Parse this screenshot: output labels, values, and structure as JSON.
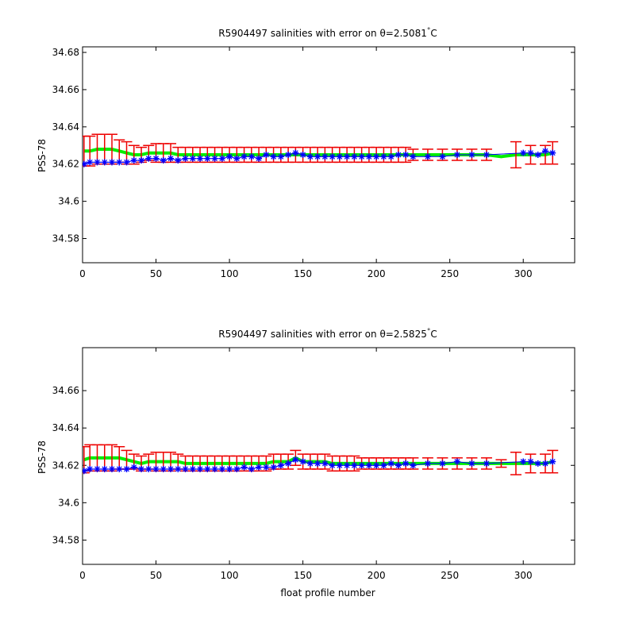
{
  "colors": {
    "mapped": "#00ee00",
    "error": "#ee0000",
    "float": "#0000ff",
    "axis": "#000000",
    "background": "#ffffff"
  },
  "chart_data": [
    {
      "type": "scatter",
      "title_prefix": "R5904497 salinities with error on ",
      "theta_symbol": "θ",
      "theta_value": "=2.5081",
      "degree": "°",
      "unit": "C",
      "xlabel": "",
      "ylabel": "PSS-78",
      "xlim": [
        0,
        335
      ],
      "ylim": [
        34.567,
        34.683
      ],
      "xticks": [
        0,
        50,
        100,
        150,
        200,
        250,
        300
      ],
      "yticks": [
        34.58,
        34.6,
        34.62,
        34.64,
        34.66,
        34.68
      ],
      "ytick_labels": [
        "34.58",
        "34.6",
        "34.62",
        "34.64",
        "34.66",
        "34.68"
      ],
      "grid": false,
      "series": [
        {
          "role": "mapped",
          "with_error": true,
          "points": [
            [
              1,
              34.627,
              0.008
            ],
            [
              5,
              34.627,
              0.008
            ],
            [
              10,
              34.628,
              0.008
            ],
            [
              15,
              34.628,
              0.008
            ],
            [
              20,
              34.628,
              0.008
            ],
            [
              25,
              34.627,
              0.006
            ],
            [
              30,
              34.626,
              0.006
            ],
            [
              35,
              34.625,
              0.005
            ],
            [
              40,
              34.625,
              0.004
            ],
            [
              45,
              34.626,
              0.004
            ],
            [
              50,
              34.626,
              0.005
            ],
            [
              55,
              34.626,
              0.005
            ],
            [
              60,
              34.626,
              0.005
            ],
            [
              65,
              34.625,
              0.004
            ],
            [
              70,
              34.625,
              0.004
            ],
            [
              75,
              34.625,
              0.004
            ],
            [
              80,
              34.625,
              0.004
            ],
            [
              85,
              34.625,
              0.004
            ],
            [
              90,
              34.625,
              0.004
            ],
            [
              95,
              34.625,
              0.004
            ],
            [
              100,
              34.625,
              0.004
            ],
            [
              105,
              34.625,
              0.004
            ],
            [
              110,
              34.625,
              0.004
            ],
            [
              115,
              34.625,
              0.004
            ],
            [
              120,
              34.625,
              0.004
            ],
            [
              125,
              34.625,
              0.004
            ],
            [
              130,
              34.625,
              0.004
            ],
            [
              135,
              34.625,
              0.004
            ],
            [
              140,
              34.625,
              0.004
            ],
            [
              145,
              34.625,
              0.004
            ],
            [
              150,
              34.625,
              0.004
            ],
            [
              155,
              34.625,
              0.004
            ],
            [
              160,
              34.625,
              0.004
            ],
            [
              165,
              34.625,
              0.004
            ],
            [
              170,
              34.625,
              0.004
            ],
            [
              175,
              34.625,
              0.004
            ],
            [
              180,
              34.625,
              0.004
            ],
            [
              185,
              34.625,
              0.004
            ],
            [
              190,
              34.625,
              0.004
            ],
            [
              195,
              34.625,
              0.004
            ],
            [
              200,
              34.625,
              0.004
            ],
            [
              205,
              34.625,
              0.004
            ],
            [
              210,
              34.625,
              0.004
            ],
            [
              215,
              34.625,
              0.004
            ],
            [
              220,
              34.625,
              0.004
            ],
            [
              225,
              34.625,
              0.003
            ],
            [
              235,
              34.625,
              0.003
            ],
            [
              245,
              34.625,
              0.003
            ],
            [
              255,
              34.625,
              0.003
            ],
            [
              265,
              34.625,
              0.003
            ],
            [
              275,
              34.625,
              0.003
            ],
            [
              285,
              34.624,
              0
            ],
            [
              295,
              34.625,
              0.007
            ],
            [
              305,
              34.625,
              0.005
            ],
            [
              315,
              34.625,
              0.005
            ],
            [
              320,
              34.626,
              0.006
            ]
          ]
        },
        {
          "role": "float",
          "with_error": false,
          "points": [
            [
              1,
              34.62
            ],
            [
              5,
              34.621
            ],
            [
              10,
              34.621
            ],
            [
              15,
              34.621
            ],
            [
              20,
              34.621
            ],
            [
              25,
              34.621
            ],
            [
              30,
              34.621
            ],
            [
              35,
              34.622
            ],
            [
              40,
              34.622
            ],
            [
              45,
              34.623
            ],
            [
              50,
              34.623
            ],
            [
              55,
              34.622
            ],
            [
              60,
              34.623
            ],
            [
              65,
              34.622
            ],
            [
              70,
              34.623
            ],
            [
              75,
              34.623
            ],
            [
              80,
              34.623
            ],
            [
              85,
              34.623
            ],
            [
              90,
              34.623
            ],
            [
              95,
              34.623
            ],
            [
              100,
              34.624
            ],
            [
              105,
              34.623
            ],
            [
              110,
              34.624
            ],
            [
              115,
              34.624
            ],
            [
              120,
              34.623
            ],
            [
              125,
              34.625
            ],
            [
              130,
              34.624
            ],
            [
              135,
              34.624
            ],
            [
              140,
              34.625
            ],
            [
              145,
              34.626
            ],
            [
              150,
              34.625
            ],
            [
              155,
              34.624
            ],
            [
              160,
              34.624
            ],
            [
              165,
              34.624
            ],
            [
              170,
              34.624
            ],
            [
              175,
              34.624
            ],
            [
              180,
              34.624
            ],
            [
              185,
              34.624
            ],
            [
              190,
              34.624
            ],
            [
              195,
              34.624
            ],
            [
              200,
              34.624
            ],
            [
              205,
              34.624
            ],
            [
              210,
              34.624
            ],
            [
              215,
              34.625
            ],
            [
              220,
              34.625
            ],
            [
              225,
              34.624
            ],
            [
              235,
              34.624
            ],
            [
              245,
              34.624
            ],
            [
              255,
              34.625
            ],
            [
              265,
              34.625
            ],
            [
              275,
              34.625
            ],
            [
              300,
              34.626
            ],
            [
              305,
              34.626
            ],
            [
              310,
              34.625
            ],
            [
              315,
              34.627
            ],
            [
              320,
              34.626
            ]
          ]
        }
      ]
    },
    {
      "type": "scatter",
      "title_prefix": "R5904497 salinities with error on ",
      "theta_symbol": "θ",
      "theta_value": "=2.5825",
      "degree": "°",
      "unit": "C",
      "xlabel": "float profile number",
      "ylabel": "PSS-78",
      "xlim": [
        0,
        335
      ],
      "ylim": [
        34.567,
        34.683
      ],
      "xticks": [
        0,
        50,
        100,
        150,
        200,
        250,
        300
      ],
      "yticks": [
        34.58,
        34.6,
        34.62,
        34.64,
        34.66
      ],
      "ytick_labels": [
        "34.58",
        "34.6",
        "34.62",
        "34.64",
        "34.66"
      ],
      "grid": false,
      "series": [
        {
          "role": "mapped",
          "with_error": true,
          "points": [
            [
              1,
              34.623,
              0.007
            ],
            [
              5,
              34.624,
              0.007
            ],
            [
              10,
              34.624,
              0.007
            ],
            [
              15,
              34.624,
              0.007
            ],
            [
              20,
              34.624,
              0.007
            ],
            [
              25,
              34.624,
              0.006
            ],
            [
              30,
              34.623,
              0.005
            ],
            [
              35,
              34.622,
              0.004
            ],
            [
              40,
              34.621,
              0.004
            ],
            [
              45,
              34.622,
              0.004
            ],
            [
              50,
              34.622,
              0.005
            ],
            [
              55,
              34.622,
              0.005
            ],
            [
              60,
              34.622,
              0.005
            ],
            [
              65,
              34.622,
              0.004
            ],
            [
              70,
              34.621,
              0.004
            ],
            [
              75,
              34.621,
              0.004
            ],
            [
              80,
              34.621,
              0.004
            ],
            [
              85,
              34.621,
              0.004
            ],
            [
              90,
              34.621,
              0.004
            ],
            [
              95,
              34.621,
              0.004
            ],
            [
              100,
              34.621,
              0.004
            ],
            [
              105,
              34.621,
              0.004
            ],
            [
              110,
              34.621,
              0.004
            ],
            [
              115,
              34.621,
              0.004
            ],
            [
              120,
              34.621,
              0.004
            ],
            [
              125,
              34.621,
              0.004
            ],
            [
              130,
              34.622,
              0.004
            ],
            [
              135,
              34.622,
              0.004
            ],
            [
              140,
              34.622,
              0.004
            ],
            [
              145,
              34.624,
              0.004
            ],
            [
              150,
              34.622,
              0.004
            ],
            [
              155,
              34.622,
              0.004
            ],
            [
              160,
              34.622,
              0.004
            ],
            [
              165,
              34.622,
              0.004
            ],
            [
              170,
              34.621,
              0.004
            ],
            [
              175,
              34.621,
              0.004
            ],
            [
              180,
              34.621,
              0.004
            ],
            [
              185,
              34.621,
              0.004
            ],
            [
              190,
              34.621,
              0.003
            ],
            [
              195,
              34.621,
              0.003
            ],
            [
              200,
              34.621,
              0.003
            ],
            [
              205,
              34.621,
              0.003
            ],
            [
              210,
              34.621,
              0.003
            ],
            [
              215,
              34.621,
              0.003
            ],
            [
              220,
              34.621,
              0.003
            ],
            [
              225,
              34.621,
              0.003
            ],
            [
              235,
              34.621,
              0.003
            ],
            [
              245,
              34.621,
              0.003
            ],
            [
              255,
              34.621,
              0.003
            ],
            [
              265,
              34.621,
              0.003
            ],
            [
              275,
              34.621,
              0.003
            ],
            [
              285,
              34.621,
              0.002
            ],
            [
              295,
              34.621,
              0.006
            ],
            [
              305,
              34.621,
              0.005
            ],
            [
              315,
              34.621,
              0.005
            ],
            [
              320,
              34.622,
              0.006
            ]
          ]
        },
        {
          "role": "float",
          "with_error": false,
          "points": [
            [
              1,
              34.617
            ],
            [
              5,
              34.618
            ],
            [
              10,
              34.618
            ],
            [
              15,
              34.618
            ],
            [
              20,
              34.618
            ],
            [
              25,
              34.618
            ],
            [
              30,
              34.618
            ],
            [
              35,
              34.619
            ],
            [
              40,
              34.618
            ],
            [
              45,
              34.618
            ],
            [
              50,
              34.618
            ],
            [
              55,
              34.618
            ],
            [
              60,
              34.618
            ],
            [
              65,
              34.618
            ],
            [
              70,
              34.618
            ],
            [
              75,
              34.618
            ],
            [
              80,
              34.618
            ],
            [
              85,
              34.618
            ],
            [
              90,
              34.618
            ],
            [
              95,
              34.618
            ],
            [
              100,
              34.618
            ],
            [
              105,
              34.618
            ],
            [
              110,
              34.619
            ],
            [
              115,
              34.618
            ],
            [
              120,
              34.619
            ],
            [
              125,
              34.619
            ],
            [
              130,
              34.619
            ],
            [
              135,
              34.62
            ],
            [
              140,
              34.621
            ],
            [
              145,
              34.623
            ],
            [
              150,
              34.622
            ],
            [
              155,
              34.621
            ],
            [
              160,
              34.621
            ],
            [
              165,
              34.621
            ],
            [
              170,
              34.62
            ],
            [
              175,
              34.62
            ],
            [
              180,
              34.62
            ],
            [
              185,
              34.62
            ],
            [
              190,
              34.62
            ],
            [
              195,
              34.62
            ],
            [
              200,
              34.62
            ],
            [
              205,
              34.62
            ],
            [
              210,
              34.621
            ],
            [
              215,
              34.62
            ],
            [
              220,
              34.621
            ],
            [
              225,
              34.62
            ],
            [
              235,
              34.621
            ],
            [
              245,
              34.621
            ],
            [
              255,
              34.622
            ],
            [
              265,
              34.621
            ],
            [
              275,
              34.621
            ],
            [
              300,
              34.622
            ],
            [
              305,
              34.622
            ],
            [
              310,
              34.621
            ],
            [
              315,
              34.621
            ],
            [
              320,
              34.622
            ]
          ]
        }
      ]
    }
  ]
}
